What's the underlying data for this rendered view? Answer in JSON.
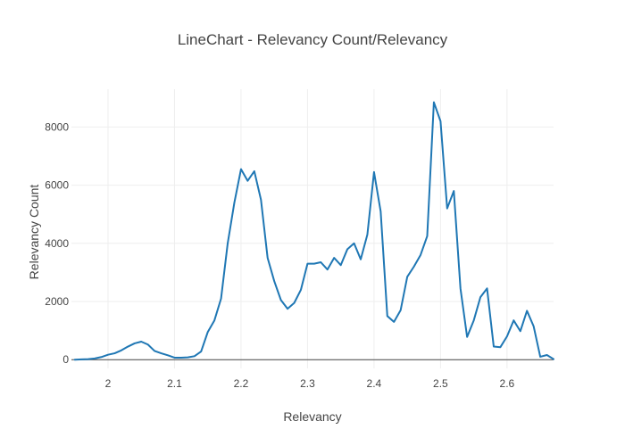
{
  "chart_data": {
    "type": "line",
    "title": "LineChart - Relevancy Count/Relevancy",
    "xlabel": "Relevancy",
    "ylabel": "Relevancy Count",
    "xlim": [
      1.945,
      2.67
    ],
    "ylim": [
      -300,
      9300
    ],
    "x_ticks": [
      2,
      2.1,
      2.2,
      2.3,
      2.4,
      2.5,
      2.6
    ],
    "x_tick_labels": [
      "2",
      "2.1",
      "2.2",
      "2.3",
      "2.4",
      "2.5",
      "2.6"
    ],
    "y_ticks": [
      0,
      2000,
      4000,
      6000,
      8000
    ],
    "y_tick_labels": [
      "0",
      "2000",
      "4000",
      "6000",
      "8000"
    ],
    "grid": true,
    "legend": "none",
    "colors": {
      "line": "#1f77b4",
      "grid": "#eeeeee",
      "zero_line": "#444444",
      "text": "#444444"
    },
    "series": [
      {
        "x": [
          1.95,
          1.96,
          1.97,
          1.98,
          1.99,
          2.0,
          2.01,
          2.02,
          2.03,
          2.04,
          2.05,
          2.06,
          2.07,
          2.08,
          2.09,
          2.1,
          2.11,
          2.12,
          2.13,
          2.14,
          2.15,
          2.16,
          2.17,
          2.18,
          2.19,
          2.2,
          2.21,
          2.22,
          2.23,
          2.24,
          2.25,
          2.26,
          2.27,
          2.28,
          2.29,
          2.3,
          2.31,
          2.32,
          2.33,
          2.34,
          2.35,
          2.36,
          2.37,
          2.38,
          2.39,
          2.4,
          2.41,
          2.42,
          2.43,
          2.44,
          2.45,
          2.46,
          2.47,
          2.48,
          2.49,
          2.5,
          2.51,
          2.52,
          2.53,
          2.54,
          2.55,
          2.56,
          2.57,
          2.58,
          2.59,
          2.6,
          2.61,
          2.62,
          2.63,
          2.64,
          2.65,
          2.66,
          2.67
        ],
        "values": [
          0,
          10,
          20,
          40,
          90,
          170,
          220,
          320,
          450,
          560,
          620,
          520,
          300,
          220,
          150,
          70,
          70,
          80,
          120,
          280,
          950,
          1350,
          2100,
          4000,
          5400,
          6550,
          6150,
          6480,
          5500,
          3500,
          2700,
          2050,
          1750,
          1950,
          2400,
          3300,
          3300,
          3350,
          3100,
          3500,
          3250,
          3800,
          4000,
          3450,
          4300,
          6450,
          5100,
          1500,
          1300,
          1700,
          2850,
          3200,
          3600,
          4250,
          8850,
          8200,
          5200,
          5800,
          2450,
          780,
          1350,
          2150,
          2450,
          450,
          430,
          800,
          1350,
          980,
          1680,
          1150,
          100,
          160,
          20
        ]
      }
    ]
  }
}
